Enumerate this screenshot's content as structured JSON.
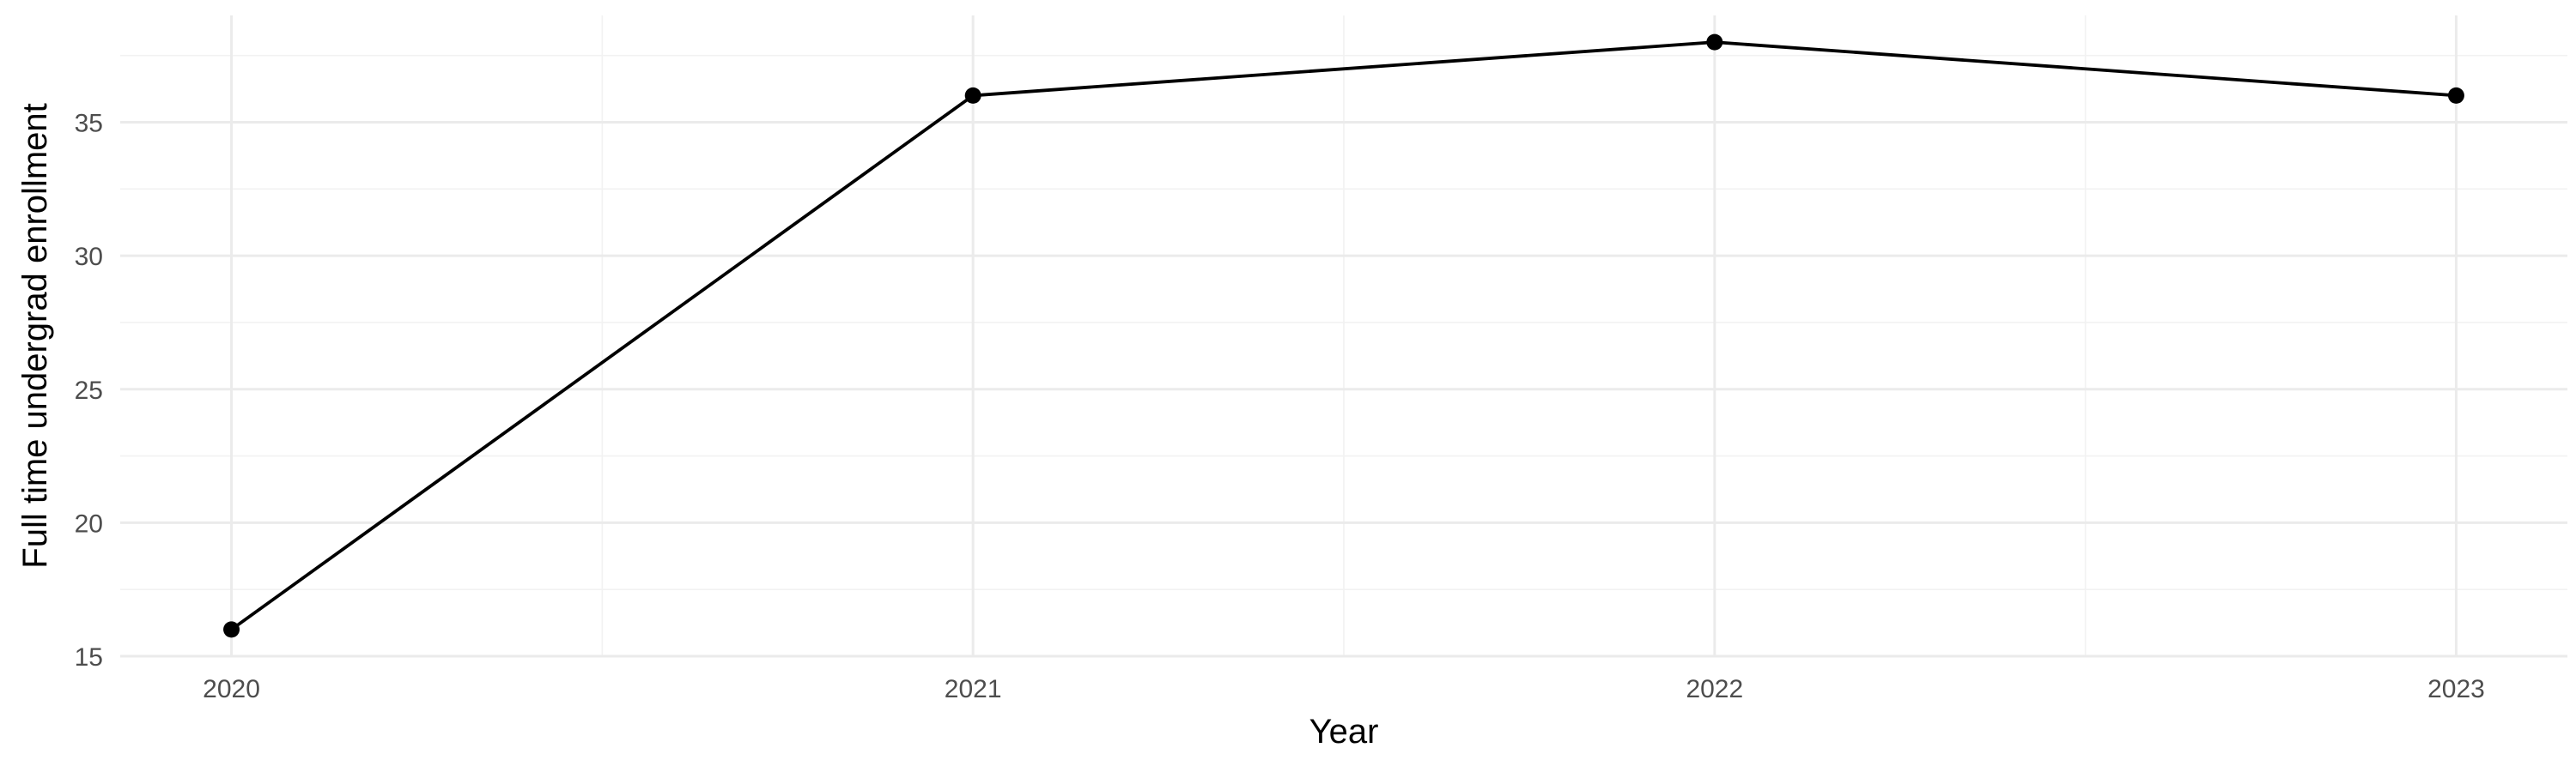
{
  "chart_data": {
    "type": "line",
    "title": "",
    "xlabel": "Year",
    "ylabel": "Full time undergrad enrollment",
    "x": [
      2020,
      2021,
      2022,
      2023
    ],
    "x_tick_labels": [
      "2020",
      "2021",
      "2022",
      "2023"
    ],
    "series": [
      {
        "values": [
          16,
          36,
          38,
          36
        ]
      }
    ],
    "xlim": [
      2019.85,
      2023.15
    ],
    "ylim": [
      15,
      39
    ],
    "y_ticks": [
      15,
      20,
      25,
      30,
      35
    ],
    "y_tick_labels": [
      "15",
      "20",
      "25",
      "30",
      "35"
    ],
    "grid": true,
    "legend": "none",
    "colors": {
      "line": "#000000",
      "points": "#000000",
      "grid_major": "#ebebeb",
      "grid_minor": "#f2f2f2",
      "tick_text": "#4d4d4d",
      "background": "#ffffff"
    }
  }
}
